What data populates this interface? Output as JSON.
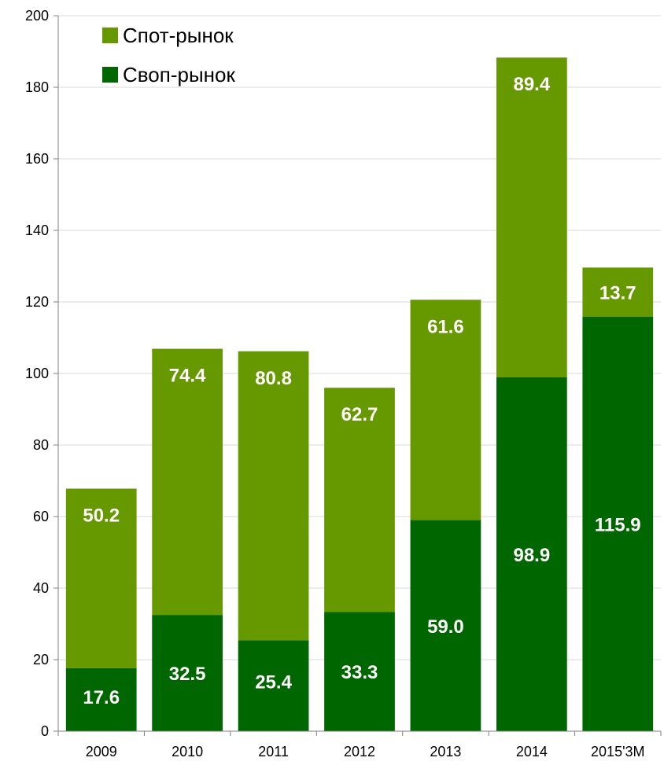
{
  "chart_data": {
    "type": "bar",
    "stacked": true,
    "categories": [
      "2009",
      "2010",
      "2011",
      "2012",
      "2013",
      "2014",
      "2015'3M"
    ],
    "series": [
      {
        "name": "Своп-рынок",
        "color": "#006600",
        "values": [
          17.6,
          32.5,
          25.4,
          33.3,
          59.0,
          98.9,
          115.9
        ],
        "labels": [
          "17.6",
          "32.5",
          "25.4",
          "33.3",
          "59.0",
          "98.9",
          "115.9"
        ]
      },
      {
        "name": "Спот-рынок",
        "color": "#669900",
        "values": [
          50.2,
          74.4,
          80.8,
          62.7,
          61.6,
          89.4,
          13.7
        ],
        "labels": [
          "50.2",
          "74.4",
          "80.8",
          "62.7",
          "61.6",
          "89.4",
          "13.7"
        ]
      }
    ],
    "ylim": [
      0,
      200
    ],
    "yticks": [
      "0",
      "20",
      "40",
      "60",
      "80",
      "100",
      "120",
      "140",
      "160",
      "180",
      "200"
    ],
    "grid": true,
    "legend_position": "top-left",
    "legend_order": [
      "Спот-рынок",
      "Своп-рынок"
    ],
    "title": "",
    "xlabel": "",
    "ylabel": ""
  }
}
